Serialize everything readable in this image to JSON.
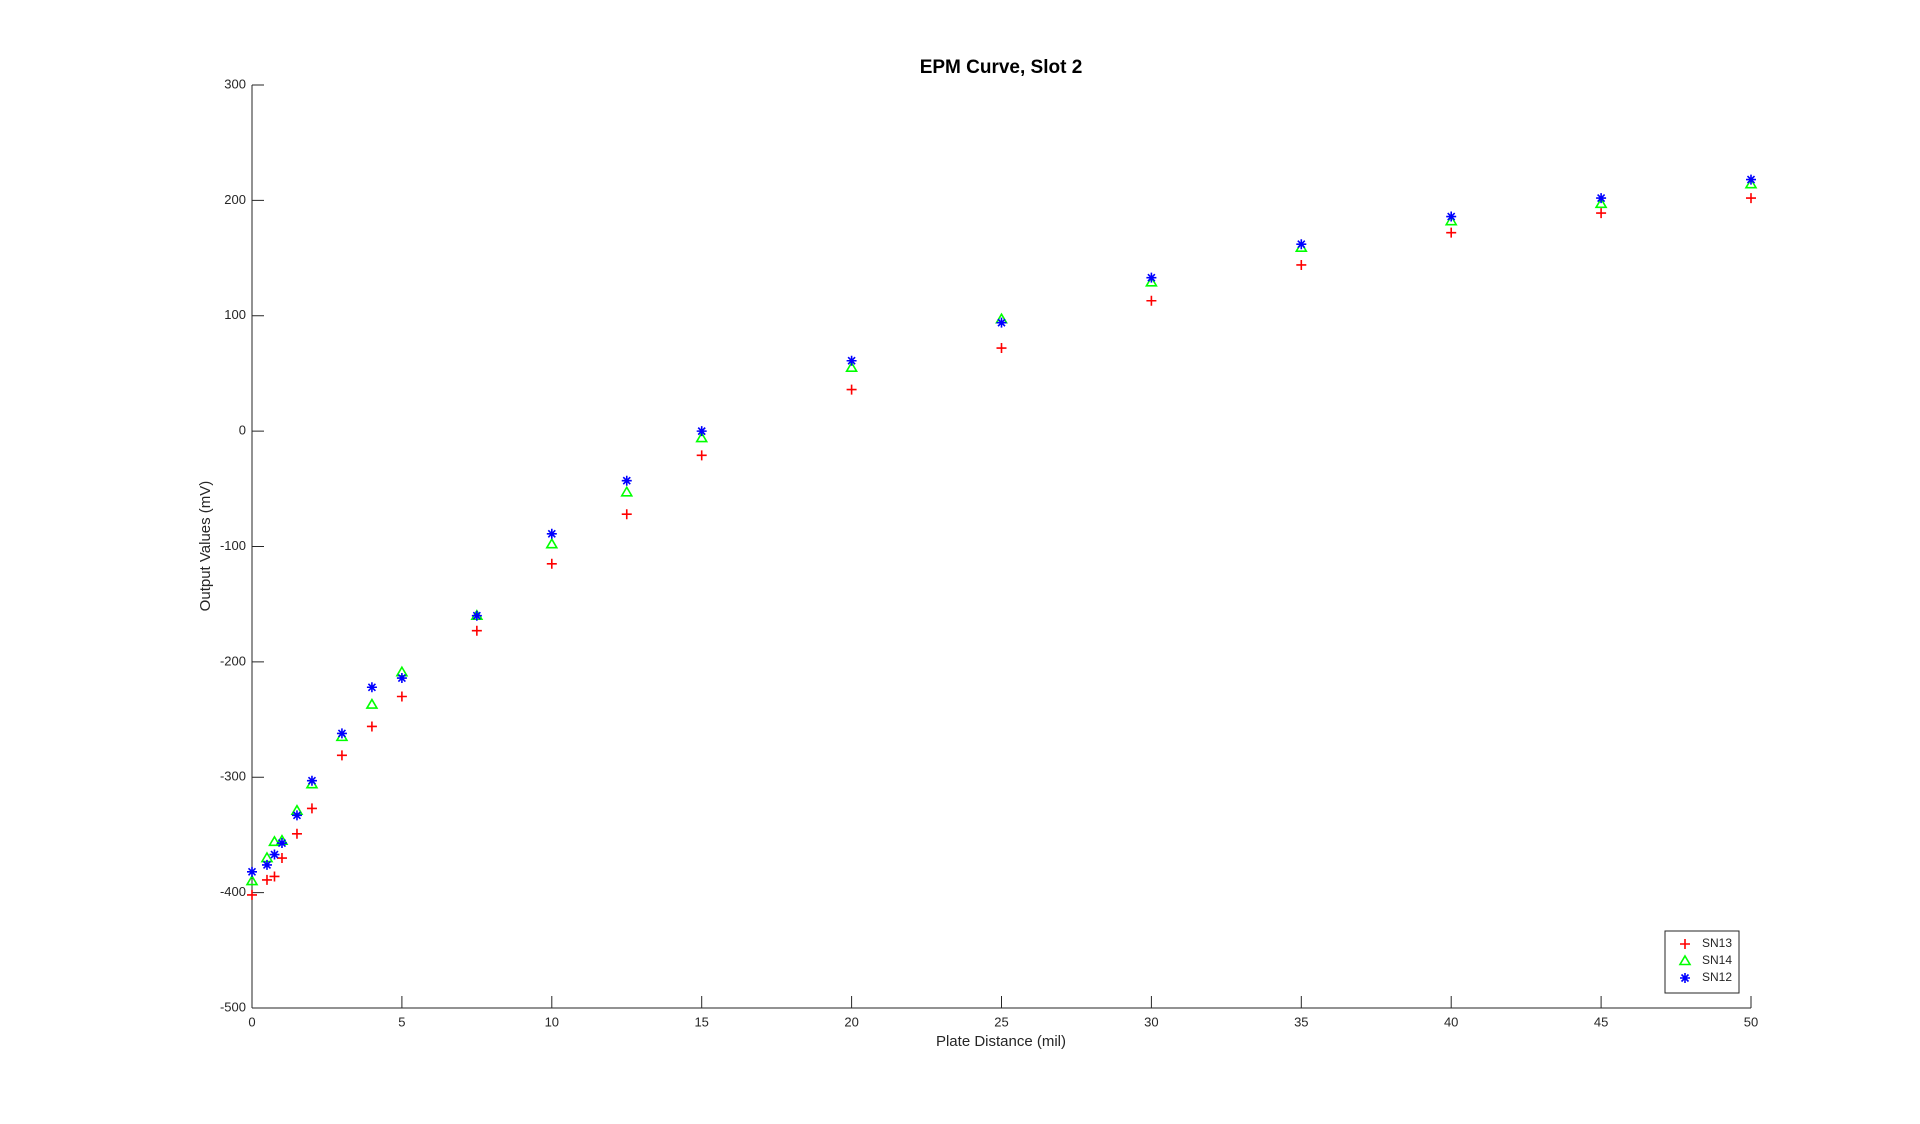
{
  "chart_data": {
    "type": "scatter",
    "title": "EPM Curve, Slot 2",
    "x_label": "Plate Distance (mil)",
    "y_label": "Output Values (mV)",
    "x": [
      0,
      0.5,
      0.75,
      1,
      1.5,
      2,
      3,
      4,
      5,
      7.5,
      10,
      12.5,
      15,
      20,
      25,
      30,
      35,
      40,
      45,
      50
    ],
    "series": [
      {
        "name": "SN13",
        "color": "#ff0000",
        "marker": "plus",
        "values": [
          -402,
          -389,
          -386,
          -370,
          -349,
          -327,
          -281,
          -256,
          -230,
          -173,
          -115,
          -72,
          -21,
          36,
          72,
          113,
          144,
          172,
          189,
          202
        ]
      },
      {
        "name": "SN14",
        "color": "#00ff00",
        "marker": "triangle",
        "values": [
          -390,
          -370,
          -356,
          -355,
          -329,
          -306,
          -265,
          -237,
          -209,
          -160,
          -98,
          -53,
          -6,
          55,
          97,
          129,
          159,
          182,
          197,
          214
        ]
      },
      {
        "name": "SN12",
        "color": "#0000ff",
        "marker": "asterisk",
        "values": [
          -382,
          -376,
          -367,
          -357,
          -333,
          -303,
          -262,
          -222,
          -214,
          -160,
          -89,
          -43,
          0,
          61,
          94,
          133,
          162,
          186,
          202,
          218
        ]
      }
    ],
    "xlim": [
      0,
      50
    ],
    "xticks": [
      0,
      5,
      10,
      15,
      20,
      25,
      30,
      35,
      40,
      45,
      50
    ],
    "ylim": [
      -500,
      300
    ],
    "yticks": [
      -500,
      -400,
      -300,
      -200,
      -100,
      0,
      100,
      200,
      300
    ],
    "grid": false,
    "legend_position": "lower-right"
  }
}
